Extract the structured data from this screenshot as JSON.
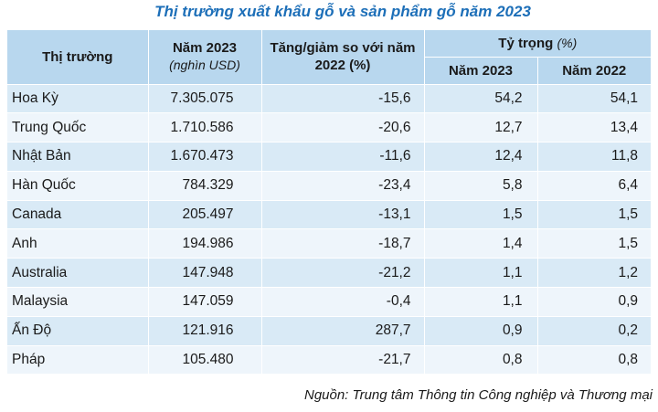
{
  "title": "Thị trường xuất khẩu gỗ và sản phẩm gỗ năm 2023",
  "headers": {
    "market": "Thị trường",
    "value_line1": "Năm 2023",
    "value_line2": "(nghìn USD)",
    "change_line1": "Tăng/giảm so với năm",
    "change_line2": "2022 (%)",
    "share_group": "Tỷ trọng",
    "share_group_unit": "(%)",
    "share_2023": "Năm 2023",
    "share_2022": "Năm 2022"
  },
  "rows": [
    {
      "market": "Hoa Kỳ",
      "value": "7.305.075",
      "change": "-15,6",
      "share_2023": "54,2",
      "share_2022": "54,1"
    },
    {
      "market": "Trung Quốc",
      "value": "1.710.586",
      "change": "-20,6",
      "share_2023": "12,7",
      "share_2022": "13,4"
    },
    {
      "market": "Nhật Bản",
      "value": "1.670.473",
      "change": "-11,6",
      "share_2023": "12,4",
      "share_2022": "11,8"
    },
    {
      "market": "Hàn Quốc",
      "value": "784.329",
      "change": "-23,4",
      "share_2023": "5,8",
      "share_2022": "6,4"
    },
    {
      "market": "Canada",
      "value": "205.497",
      "change": "-13,1",
      "share_2023": "1,5",
      "share_2022": "1,5"
    },
    {
      "market": "Anh",
      "value": "194.986",
      "change": "-18,7",
      "share_2023": "1,4",
      "share_2022": "1,5"
    },
    {
      "market": "Australia",
      "value": "147.948",
      "change": "-21,2",
      "share_2023": "1,1",
      "share_2022": "1,2"
    },
    {
      "market": "Malaysia",
      "value": "147.059",
      "change": "-0,4",
      "share_2023": "1,1",
      "share_2022": "0,9"
    },
    {
      "market": "Ấn Độ",
      "value": "121.916",
      "change": "287,7",
      "share_2023": "0,9",
      "share_2022": "0,2"
    },
    {
      "market": "Pháp",
      "value": "105.480",
      "change": "-21,7",
      "share_2023": "0,8",
      "share_2022": "0,8"
    }
  ],
  "source": "Nguồn: Trung tâm Thông tin Công nghiệp và Thương mại"
}
